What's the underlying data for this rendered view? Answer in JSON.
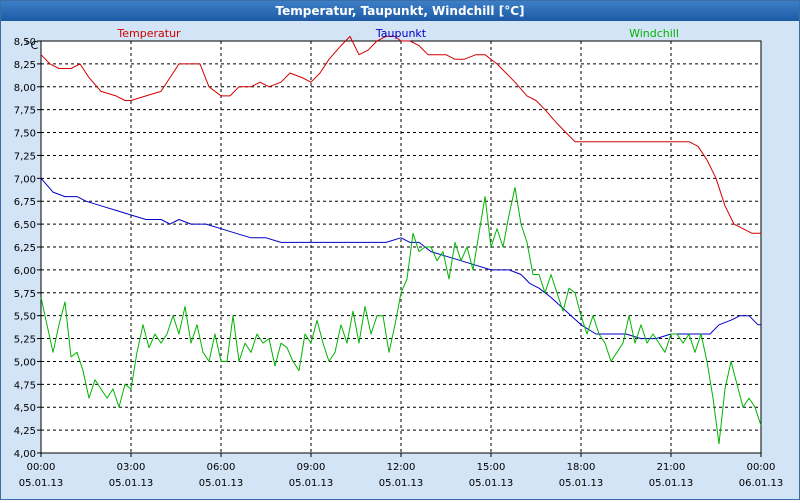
{
  "window": {
    "title": "Temperatur, Taupunkt, Windchill [°C]"
  },
  "colors": {
    "temperatur": "#d00000",
    "taupunkt": "#0000c8",
    "windchill": "#00b400"
  },
  "chart_data": {
    "type": "line",
    "title": "Temperatur, Taupunkt, Windchill [°C]",
    "ylabel": "°C",
    "ylim": [
      4.0,
      8.5
    ],
    "xlim": [
      0,
      24
    ],
    "grid": true,
    "y_ticks": [
      "8,50",
      "8,25",
      "8,00",
      "7,75",
      "7,50",
      "7,25",
      "7,00",
      "6,75",
      "6,50",
      "6,25",
      "6,00",
      "5,75",
      "5,50",
      "5,25",
      "5,00",
      "4,75",
      "4,50",
      "4,25",
      "4,00"
    ],
    "x_ticks": [
      {
        "time": "00:00",
        "date": "05.01.13"
      },
      {
        "time": "03:00",
        "date": "05.01.13"
      },
      {
        "time": "06:00",
        "date": "05.01.13"
      },
      {
        "time": "09:00",
        "date": "05.01.13"
      },
      {
        "time": "12:00",
        "date": "05.01.13"
      },
      {
        "time": "15:00",
        "date": "05.01.13"
      },
      {
        "time": "18:00",
        "date": "05.01.13"
      },
      {
        "time": "21:00",
        "date": "05.01.13"
      },
      {
        "time": "00:00",
        "date": "06.01.13"
      }
    ],
    "series": [
      {
        "name": "Temperatur",
        "x": [
          0,
          0.3,
          0.6,
          1.0,
          1.3,
          1.6,
          2.0,
          2.5,
          2.8,
          3.0,
          3.5,
          4.0,
          4.3,
          4.6,
          5.0,
          5.3,
          5.6,
          6.0,
          6.3,
          6.6,
          7.0,
          7.3,
          7.6,
          8.0,
          8.3,
          8.7,
          9.0,
          9.3,
          9.6,
          10.0,
          10.3,
          10.6,
          10.9,
          11.2,
          11.5,
          11.8,
          12.0,
          12.3,
          12.6,
          12.9,
          13.2,
          13.5,
          13.8,
          14.1,
          14.5,
          14.8,
          15.2,
          15.5,
          15.8,
          16.2,
          16.5,
          16.8,
          17.2,
          17.5,
          17.8,
          18.0,
          18.3,
          18.6,
          19.0,
          19.5,
          20.0,
          20.5,
          21.0,
          21.3,
          21.6,
          21.9,
          22.2,
          22.5,
          22.8,
          23.1,
          23.4,
          23.7,
          24.0
        ],
        "values": [
          8.35,
          8.25,
          8.2,
          8.2,
          8.25,
          8.1,
          7.95,
          7.9,
          7.85,
          7.85,
          7.9,
          7.95,
          8.1,
          8.25,
          8.25,
          8.25,
          8.0,
          7.9,
          7.9,
          8.0,
          8.0,
          8.05,
          8.0,
          8.05,
          8.15,
          8.1,
          8.05,
          8.15,
          8.3,
          8.45,
          8.55,
          8.35,
          8.4,
          8.5,
          8.55,
          8.55,
          8.5,
          8.5,
          8.45,
          8.35,
          8.35,
          8.35,
          8.3,
          8.3,
          8.35,
          8.35,
          8.25,
          8.15,
          8.05,
          7.9,
          7.85,
          7.75,
          7.6,
          7.5,
          7.4,
          7.4,
          7.4,
          7.4,
          7.4,
          7.4,
          7.4,
          7.4,
          7.4,
          7.4,
          7.4,
          7.35,
          7.2,
          7.0,
          6.7,
          6.5,
          6.45,
          6.4,
          6.4
        ]
      },
      {
        "name": "Taupunkt",
        "x": [
          0,
          0.4,
          0.8,
          1.2,
          1.5,
          2.0,
          2.5,
          3.0,
          3.5,
          4.0,
          4.3,
          4.6,
          5.0,
          5.3,
          5.5,
          6.0,
          6.5,
          7.0,
          7.5,
          8.0,
          8.5,
          9.0,
          9.5,
          10.0,
          10.5,
          11.0,
          11.5,
          12.0,
          12.3,
          12.6,
          13.0,
          13.5,
          14.0,
          14.5,
          15.0,
          15.3,
          15.6,
          16.0,
          16.3,
          16.6,
          17.0,
          17.5,
          18.0,
          18.5,
          19.0,
          19.5,
          20.0,
          20.5,
          21.0,
          21.5,
          22.0,
          22.3,
          22.6,
          23.0,
          23.3,
          23.6,
          23.9,
          24.0
        ],
        "values": [
          7.0,
          6.85,
          6.8,
          6.8,
          6.75,
          6.7,
          6.65,
          6.6,
          6.55,
          6.55,
          6.5,
          6.55,
          6.5,
          6.5,
          6.5,
          6.45,
          6.4,
          6.35,
          6.35,
          6.3,
          6.3,
          6.3,
          6.3,
          6.3,
          6.3,
          6.3,
          6.3,
          6.35,
          6.3,
          6.3,
          6.2,
          6.15,
          6.1,
          6.05,
          6.0,
          6.0,
          6.0,
          5.95,
          5.85,
          5.8,
          5.7,
          5.55,
          5.4,
          5.3,
          5.3,
          5.3,
          5.25,
          5.25,
          5.3,
          5.3,
          5.3,
          5.3,
          5.4,
          5.45,
          5.5,
          5.5,
          5.4,
          5.4
        ]
      },
      {
        "name": "Windchill",
        "x": [
          0,
          0.2,
          0.4,
          0.6,
          0.8,
          1.0,
          1.2,
          1.4,
          1.6,
          1.8,
          2.0,
          2.2,
          2.4,
          2.6,
          2.8,
          3.0,
          3.2,
          3.4,
          3.6,
          3.8,
          4.0,
          4.2,
          4.4,
          4.6,
          4.8,
          5.0,
          5.2,
          5.4,
          5.6,
          5.8,
          6.0,
          6.2,
          6.4,
          6.6,
          6.8,
          7.0,
          7.2,
          7.4,
          7.6,
          7.8,
          8.0,
          8.2,
          8.4,
          8.6,
          8.8,
          9.0,
          9.2,
          9.4,
          9.6,
          9.8,
          10.0,
          10.2,
          10.4,
          10.6,
          10.8,
          11.0,
          11.2,
          11.4,
          11.6,
          11.8,
          12.0,
          12.2,
          12.4,
          12.6,
          12.8,
          13.0,
          13.2,
          13.4,
          13.6,
          13.8,
          14.0,
          14.2,
          14.4,
          14.6,
          14.8,
          15.0,
          15.2,
          15.4,
          15.6,
          15.8,
          16.0,
          16.2,
          16.4,
          16.6,
          16.8,
          17.0,
          17.2,
          17.4,
          17.6,
          17.8,
          18.0,
          18.2,
          18.4,
          18.6,
          18.8,
          19.0,
          19.2,
          19.4,
          19.6,
          19.8,
          20.0,
          20.2,
          20.4,
          20.6,
          20.8,
          21.0,
          21.2,
          21.4,
          21.6,
          21.8,
          22.0,
          22.2,
          22.4,
          22.6,
          22.8,
          23.0,
          23.2,
          23.4,
          23.6,
          23.8,
          24.0
        ],
        "values": [
          5.7,
          5.4,
          5.1,
          5.4,
          5.65,
          5.05,
          5.1,
          4.9,
          4.6,
          4.8,
          4.7,
          4.6,
          4.7,
          4.5,
          4.75,
          4.7,
          5.1,
          5.4,
          5.15,
          5.3,
          5.2,
          5.3,
          5.5,
          5.3,
          5.6,
          5.2,
          5.4,
          5.1,
          5.0,
          5.3,
          5.0,
          5.0,
          5.5,
          5.0,
          5.2,
          5.1,
          5.3,
          5.2,
          5.25,
          4.95,
          5.2,
          5.15,
          5.0,
          4.9,
          5.3,
          5.2,
          5.45,
          5.2,
          5.0,
          5.1,
          5.4,
          5.2,
          5.55,
          5.2,
          5.6,
          5.3,
          5.5,
          5.5,
          5.1,
          5.4,
          5.75,
          5.9,
          6.4,
          6.2,
          6.25,
          6.25,
          6.1,
          6.2,
          5.9,
          6.3,
          6.1,
          6.25,
          6.0,
          6.4,
          6.8,
          6.25,
          6.45,
          6.25,
          6.6,
          6.9,
          6.5,
          6.3,
          5.95,
          5.95,
          5.75,
          5.95,
          5.75,
          5.55,
          5.8,
          5.75,
          5.5,
          5.3,
          5.5,
          5.3,
          5.2,
          5.0,
          5.1,
          5.2,
          5.5,
          5.2,
          5.4,
          5.2,
          5.3,
          5.2,
          5.1,
          5.3,
          5.3,
          5.2,
          5.3,
          5.1,
          5.3,
          5.0,
          4.6,
          4.1,
          4.7,
          5.0,
          4.75,
          4.5,
          4.6,
          4.5,
          4.3
        ]
      }
    ]
  }
}
